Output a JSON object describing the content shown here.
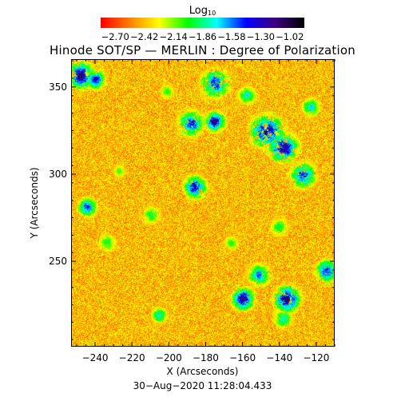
{
  "colorbar": {
    "title": "Log",
    "title_subscript": "10",
    "ticks": [
      "−2.70",
      "−2.42",
      "−2.14",
      "−1.86",
      "−1.58",
      "−1.30",
      "−1.02"
    ],
    "tick_values": [
      -2.7,
      -2.42,
      -2.14,
      -1.86,
      -1.58,
      -1.3,
      -1.02
    ],
    "range": [
      -2.84,
      -0.88
    ],
    "colors": [
      "#ff0000",
      "#ff8000",
      "#ffff00",
      "#00ff00",
      "#00ffff",
      "#0000ff",
      "#400080",
      "#000000"
    ]
  },
  "plot": {
    "title": "Hinode SOT/SP — MERLIN : Degree of Polarization",
    "xlabel": "X (Arcseconds)",
    "ylabel": "Y (Arcseconds)",
    "xticks": [
      "−240",
      "−220",
      "−200",
      "−180",
      "−160",
      "−140",
      "−120"
    ],
    "xtick_values": [
      -240,
      -220,
      -200,
      -180,
      -160,
      -140,
      -120
    ],
    "yticks": [
      "350",
      "300",
      "250"
    ],
    "ytick_values": [
      350,
      300,
      250
    ],
    "xrange": [
      -253,
      -110
    ],
    "yrange": [
      201,
      366
    ],
    "image_content": "solar polarization map, mostly low values (red/orange) with green/blue network patches"
  },
  "timestamp": "30−Aug−2020 11:28:04.433"
}
